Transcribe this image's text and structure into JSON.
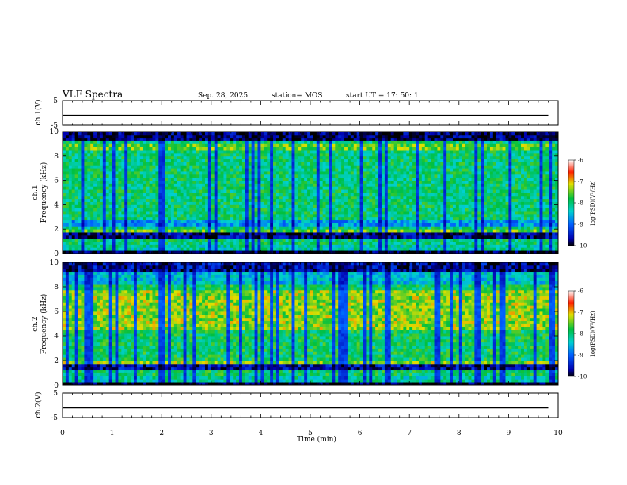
{
  "header": {
    "title": "VLF Spectra",
    "date": "Sep. 28, 2025",
    "station": "station= MOS",
    "start": "start  UT =  17: 50: 1"
  },
  "chart_data": [
    {
      "type": "line",
      "ylabel": "ch.1(V)",
      "ylim": [
        -5,
        5
      ],
      "yticks": [
        "5",
        "-5"
      ],
      "x": [
        0,
        1,
        2,
        3,
        4,
        5,
        6,
        7,
        8,
        9,
        9.8
      ],
      "values": [
        -1,
        -1,
        -1,
        -1,
        -1,
        -1,
        -1,
        -1,
        -1,
        -1,
        -1
      ],
      "xlim": [
        0,
        10
      ]
    },
    {
      "type": "heatmap",
      "ylabel": "ch.1",
      "ylabel2": "Frequency (kHz)",
      "ylim": [
        0,
        10
      ],
      "yticks": [
        "0",
        "2",
        "4",
        "6",
        "8",
        "10"
      ],
      "xlim": [
        0,
        10
      ],
      "colorbar": {
        "label": "log(PSD)(V²/Hz)",
        "range": [
          -10,
          -6
        ],
        "ticks": [
          "-6",
          "-7",
          "-8",
          "-9",
          "-10"
        ]
      }
    },
    {
      "type": "heatmap",
      "ylabel": "ch.2",
      "ylabel2": "Frequency (kHz)",
      "ylim": [
        0,
        10
      ],
      "yticks": [
        "0",
        "2",
        "4",
        "6",
        "8",
        "10"
      ],
      "xlim": [
        0,
        10
      ],
      "colorbar": {
        "label": "log(PSD)(V²/Hz)",
        "range": [
          -10,
          -6
        ],
        "ticks": [
          "-6",
          "-7",
          "-8",
          "-9",
          "-10"
        ]
      }
    },
    {
      "type": "line",
      "ylabel": "ch.2(V)",
      "ylim": [
        -5,
        5
      ],
      "yticks": [
        "5",
        "-5"
      ],
      "x": [
        0,
        1,
        2,
        3,
        4,
        5,
        6,
        7,
        8,
        9,
        9.8
      ],
      "values": [
        -1,
        -1,
        -1,
        -1,
        -1,
        -1,
        -1,
        -1,
        -1,
        -1,
        -1
      ],
      "xlim": [
        0,
        10
      ],
      "xlabel": "Time (min)",
      "xticks": [
        "0",
        "1",
        "2",
        "3",
        "4",
        "5",
        "6",
        "7",
        "8",
        "9",
        "10"
      ]
    }
  ]
}
